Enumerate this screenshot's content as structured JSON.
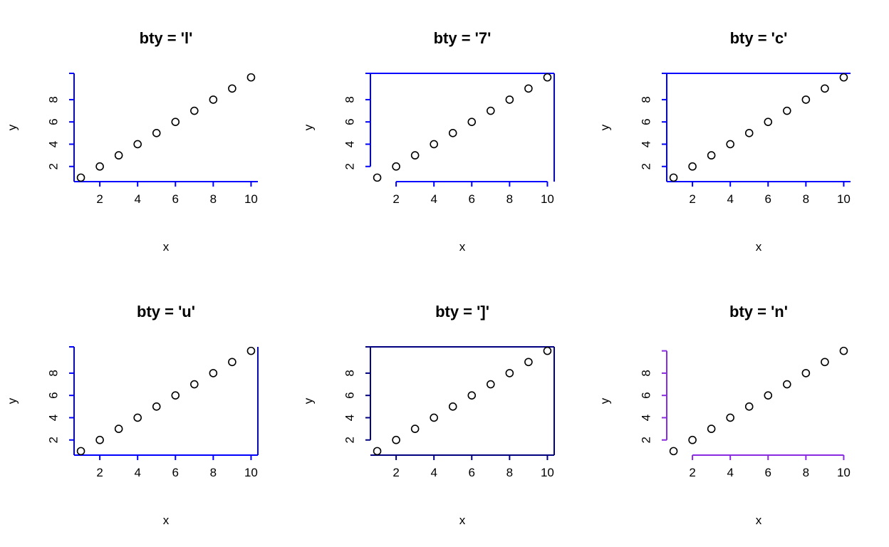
{
  "chart_data": [
    {
      "type": "scatter",
      "title": "bty = 'l'",
      "xlabel": "x",
      "ylabel": "y",
      "x": [
        1,
        2,
        3,
        4,
        5,
        6,
        7,
        8,
        9,
        10
      ],
      "y": [
        1,
        2,
        3,
        4,
        5,
        6,
        7,
        8,
        9,
        10
      ],
      "xlim": [
        0.64,
        10.36
      ],
      "ylim": [
        0.64,
        10.36
      ],
      "xticks": [
        2,
        4,
        6,
        8,
        10
      ],
      "yticks": [
        2,
        4,
        6,
        8
      ],
      "ytick_top": 10.36,
      "box": [
        "bottom",
        "left"
      ],
      "axis_color": "#0000ff",
      "axes_style": "box"
    },
    {
      "type": "scatter",
      "title": "bty = '7'",
      "xlabel": "x",
      "ylabel": "y",
      "x": [
        1,
        2,
        3,
        4,
        5,
        6,
        7,
        8,
        9,
        10
      ],
      "y": [
        1,
        2,
        3,
        4,
        5,
        6,
        7,
        8,
        9,
        10
      ],
      "xlim": [
        0.64,
        10.36
      ],
      "ylim": [
        0.64,
        10.36
      ],
      "xticks": [
        2,
        4,
        6,
        8,
        10
      ],
      "yticks": [
        2,
        4,
        6,
        8
      ],
      "ytick_top": 10.36,
      "box": [
        "top",
        "right"
      ],
      "axis_color": "#0000ff",
      "axes_style": "ticks"
    },
    {
      "type": "scatter",
      "title": "bty = 'c'",
      "xlabel": "x",
      "ylabel": "y",
      "x": [
        1,
        2,
        3,
        4,
        5,
        6,
        7,
        8,
        9,
        10
      ],
      "y": [
        1,
        2,
        3,
        4,
        5,
        6,
        7,
        8,
        9,
        10
      ],
      "xlim": [
        0.64,
        10.36
      ],
      "ylim": [
        0.64,
        10.36
      ],
      "xticks": [
        2,
        4,
        6,
        8,
        10
      ],
      "yticks": [
        2,
        4,
        6,
        8
      ],
      "ytick_top": 10.36,
      "box": [
        "top",
        "left",
        "bottom"
      ],
      "axis_color": "#0000ff",
      "axes_style": "box"
    },
    {
      "type": "scatter",
      "title": "bty = 'u'",
      "xlabel": "x",
      "ylabel": "y",
      "x": [
        1,
        2,
        3,
        4,
        5,
        6,
        7,
        8,
        9,
        10
      ],
      "y": [
        1,
        2,
        3,
        4,
        5,
        6,
        7,
        8,
        9,
        10
      ],
      "xlim": [
        0.64,
        10.36
      ],
      "ylim": [
        0.64,
        10.36
      ],
      "xticks": [
        2,
        4,
        6,
        8,
        10
      ],
      "yticks": [
        2,
        4,
        6,
        8
      ],
      "ytick_top": 10.36,
      "box": [
        "left",
        "bottom",
        "right"
      ],
      "axis_color": "#0000ff",
      "axes_style": "box"
    },
    {
      "type": "scatter",
      "title": "bty = ']'",
      "xlabel": "x",
      "ylabel": "y",
      "x": [
        1,
        2,
        3,
        4,
        5,
        6,
        7,
        8,
        9,
        10
      ],
      "y": [
        1,
        2,
        3,
        4,
        5,
        6,
        7,
        8,
        9,
        10
      ],
      "xlim": [
        0.64,
        10.36
      ],
      "ylim": [
        0.64,
        10.36
      ],
      "xticks": [
        2,
        4,
        6,
        8,
        10
      ],
      "yticks": [
        2,
        4,
        6,
        8
      ],
      "ytick_top": 10.36,
      "box": [
        "top",
        "right",
        "bottom"
      ],
      "axis_color": "#000080",
      "axes_style": "ticks"
    },
    {
      "type": "scatter",
      "title": "bty = 'n'",
      "xlabel": "x",
      "ylabel": "y",
      "x": [
        1,
        2,
        3,
        4,
        5,
        6,
        7,
        8,
        9,
        10
      ],
      "y": [
        1,
        2,
        3,
        4,
        5,
        6,
        7,
        8,
        9,
        10
      ],
      "xlim": [
        0.64,
        10.36
      ],
      "ylim": [
        0.64,
        10.36
      ],
      "xticks": [
        2,
        4,
        6,
        8,
        10
      ],
      "yticks": [
        2,
        4,
        6,
        8
      ],
      "ytick_top": 10,
      "box": [],
      "axis_color": "#8a2be2",
      "axes_style": "ticks"
    }
  ]
}
